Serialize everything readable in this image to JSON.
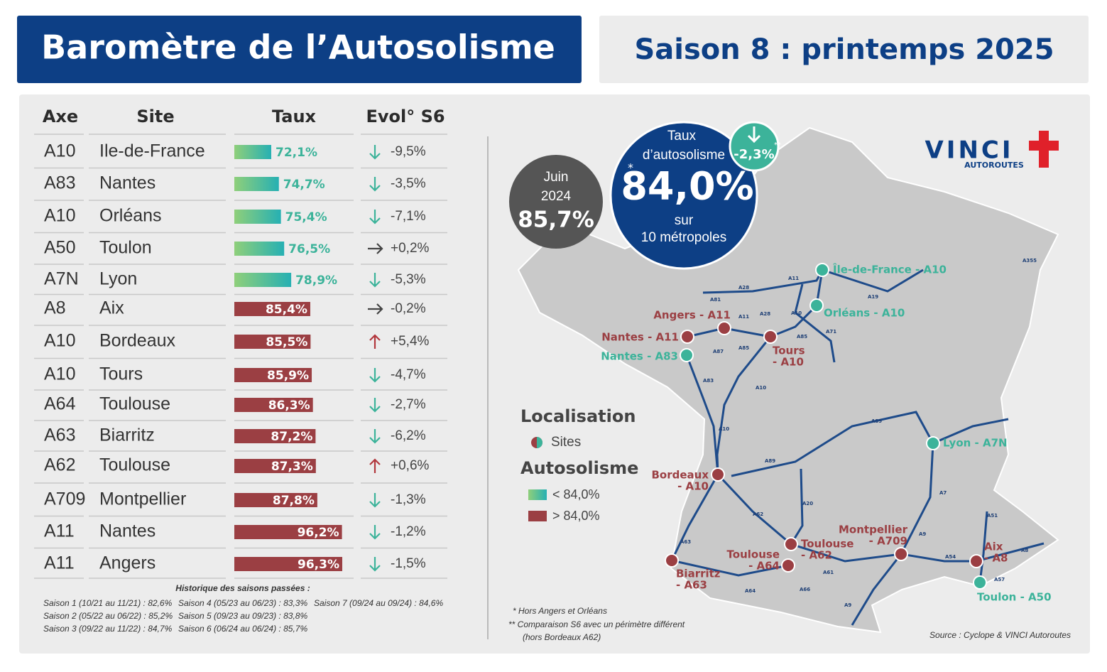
{
  "header": {
    "title": "Baromètre de l’Autosolisme",
    "season": "Saison 8 : printemps 2025"
  },
  "table": {
    "columns": [
      "Axe",
      "Site",
      "Taux",
      "Evol° S6"
    ],
    "rows": [
      {
        "axe": "A10",
        "site": "Ile-de-France",
        "rate": 72.1,
        "rate_label": "72,1%",
        "evol": -9.5,
        "evol_label": "-9,5%"
      },
      {
        "axe": "A83",
        "site": "Nantes",
        "rate": 74.7,
        "rate_label": "74,7%",
        "evol": -3.5,
        "evol_label": "-3,5%"
      },
      {
        "axe": "A10",
        "site": "Orléans",
        "rate": 75.4,
        "rate_label": "75,4%",
        "evol": -7.1,
        "evol_label": "-7,1%"
      },
      {
        "axe": "A50",
        "site": "Toulon",
        "rate": 76.5,
        "rate_label": "76,5%",
        "evol": 0.2,
        "evol_label": "+0,2%"
      },
      {
        "axe": "A7N",
        "site": "Lyon",
        "rate": 78.9,
        "rate_label": "78,9%",
        "evol": -5.3,
        "evol_label": "-5,3%"
      },
      {
        "axe": "A8",
        "site": "Aix",
        "rate": 85.4,
        "rate_label": "85,4%",
        "evol": -0.2,
        "evol_label": "-0,2%"
      },
      {
        "axe": "A10",
        "site": "Bordeaux",
        "rate": 85.5,
        "rate_label": "85,5%",
        "evol": 5.4,
        "evol_label": "+5,4%"
      },
      {
        "axe": "A10",
        "site": "Tours",
        "rate": 85.9,
        "rate_label": "85,9%",
        "evol": -4.7,
        "evol_label": "-4,7%"
      },
      {
        "axe": "A64",
        "site": "Toulouse",
        "rate": 86.3,
        "rate_label": "86,3%",
        "evol": -2.7,
        "evol_label": "-2,7%"
      },
      {
        "axe": "A63",
        "site": "Biarritz",
        "rate": 87.2,
        "rate_label": "87,2%",
        "evol": -6.2,
        "evol_label": "-6,2%"
      },
      {
        "axe": "A62",
        "site": "Toulouse",
        "rate": 87.3,
        "rate_label": "87,3%",
        "evol": 0.6,
        "evol_label": "+0,6%"
      },
      {
        "axe": "A709",
        "site": "Montpellier",
        "rate": 87.8,
        "rate_label": "87,8%",
        "evol": -1.3,
        "evol_label": "-1,3%"
      },
      {
        "axe": "A11",
        "site": "Nantes",
        "rate": 96.2,
        "rate_label": "96,2%",
        "evol": -1.2,
        "evol_label": "-1,2%"
      },
      {
        "axe": "A11",
        "site": "Angers",
        "rate": 96.3,
        "rate_label": "96,3%",
        "evol": -1.5,
        "evol_label": "-1,5%"
      }
    ]
  },
  "history": {
    "title": "Historique des saisons passées :",
    "seasons": [
      "Saison 1 (10/21 au 11/21) : 82,6%",
      "Saison 2 (05/22 au 06/22) : 85,2%",
      "Saison 3 (09/22 au 11/22) : 84,7%",
      "Saison 4 (05/23 au 06/23) : 83,3%",
      "Saison 5 (09/23 au 09/23) : 83,8%",
      "Saison 6 (06/24 au 06/24) : 85,7%",
      "Saison 7 (09/24 au 09/24) : 84,6%"
    ]
  },
  "headline": {
    "prev_lines": [
      "Juin",
      "2024"
    ],
    "prev": "85,7%",
    "title_lines": [
      "Taux",
      "d’autosolisme"
    ],
    "rate": {
      "value": 84.0,
      "label": "84,0%"
    },
    "star": "*",
    "sub_lines": [
      "sur",
      "10 métropoles"
    ],
    "evol": "-2,3%",
    "evol_star": "**"
  },
  "logo": {
    "name": "VINCI",
    "sub": "AUTOROUTES"
  },
  "legend": {
    "localisation": "Localisation",
    "sites": "Sites",
    "autosolisme": "Autosolisme",
    "below": "< 84,0%",
    "above": "> 84,0%"
  },
  "map": {
    "sites": [
      {
        "lines": [
          "Île-de-France - A10"
        ],
        "color": "#3cb39a"
      },
      {
        "lines": [
          "Orléans - A10"
        ],
        "color": "#3cb39a"
      },
      {
        "lines": [
          "Angers - A11"
        ],
        "color": "#9b3f43"
      },
      {
        "lines": [
          "Nantes - A11"
        ],
        "color": "#9b3f43"
      },
      {
        "lines": [
          "Nantes - A83"
        ],
        "color": "#3cb39a"
      },
      {
        "lines": [
          "Tours",
          "- A10"
        ],
        "color": "#9b3f43"
      },
      {
        "lines": [
          "Lyon - A7N"
        ],
        "color": "#3cb39a"
      },
      {
        "lines": [
          "Bordeaux",
          "- A10"
        ],
        "color": "#9b3f43"
      },
      {
        "lines": [
          "Montpellier",
          "- A709"
        ],
        "color": "#9b3f43"
      },
      {
        "lines": [
          "Toulouse",
          "- A62"
        ],
        "color": "#9b3f43"
      },
      {
        "lines": [
          "Toulouse",
          "- A64"
        ],
        "color": "#9b3f43"
      },
      {
        "lines": [
          "Biarritz",
          "- A63"
        ],
        "color": "#9b3f43"
      },
      {
        "lines": [
          "Aix",
          "- A8"
        ],
        "color": "#9b3f43"
      },
      {
        "lines": [
          "Toulon - A50"
        ],
        "color": "#3cb39a"
      }
    ],
    "road_labels": [
      "A28",
      "A81",
      "A11",
      "A19",
      "A10",
      "A71",
      "A85",
      "A28",
      "A11",
      "A87",
      "A85",
      "A83",
      "A10",
      "A10",
      "A89",
      "A89",
      "A7",
      "A20",
      "A62",
      "A51",
      "A9",
      "A54",
      "A63",
      "A61",
      "A64",
      "A66",
      "A9",
      "A8",
      "A57",
      "A355"
    ]
  },
  "footnotes": [
    "* Hors Angers et Orléans",
    "** Comparaison S6 avec un périmètre différent",
    "(hors Bordeaux A62)"
  ],
  "source": "Source : Cyclope & VINCI Autoroutes"
}
